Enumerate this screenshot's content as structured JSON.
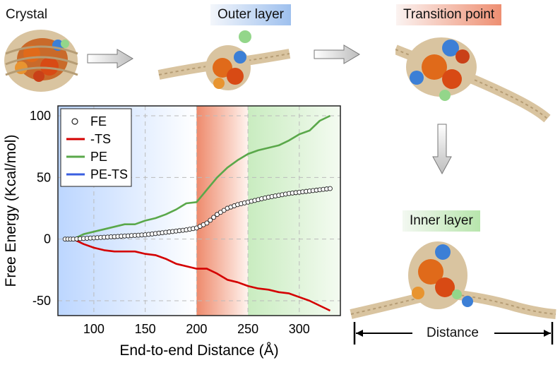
{
  "stages": {
    "crystal": "Crystal",
    "outer": "Outer layer",
    "transition": "Transition point",
    "inner": "Inner layer"
  },
  "distance_label": "Distance",
  "colors": {
    "fe_marker": "#222222",
    "ts": "#d40000",
    "pe": "#5aa84a",
    "pe_ts": "#3a5fe0",
    "region_blue": "#bcd6ff",
    "region_red": "#ee8a6c",
    "region_green": "#c9ecc0",
    "dna": "#d9c4a0",
    "protein_orange": "#e06a1a",
    "protein_blue": "#3c7fd6",
    "protein_green": "#93d68a"
  },
  "chart_data": {
    "type": "line",
    "xlabel": "End-to-end Distance (Å)",
    "ylabel": "Free Energy (Kcal/mol)",
    "xlim": [
      65,
      340
    ],
    "ylim": [
      -62,
      108
    ],
    "xticks": [
      "100",
      "150",
      "200",
      "250",
      "300"
    ],
    "yticks": [
      "-50",
      "0",
      "50",
      "100"
    ],
    "grid": true,
    "legend": "top-left",
    "regions": [
      {
        "from": 65,
        "to": 200,
        "color": "blue"
      },
      {
        "from": 200,
        "to": 250,
        "color": "red"
      },
      {
        "from": 250,
        "to": 340,
        "color": "green"
      }
    ],
    "x": [
      72,
      80,
      90,
      100,
      110,
      120,
      130,
      140,
      150,
      160,
      170,
      180,
      190,
      200,
      210,
      220,
      230,
      240,
      250,
      260,
      270,
      280,
      290,
      300,
      310,
      320,
      330
    ],
    "series": [
      {
        "name": "FE",
        "style": "marker",
        "values": [
          0,
          0,
          0.5,
          1,
          1.5,
          2,
          2.5,
          3,
          3.5,
          4.5,
          5.5,
          6.5,
          7.5,
          9,
          13,
          20,
          25,
          28,
          30,
          32,
          34,
          35.5,
          37,
          38,
          39,
          40,
          41
        ]
      },
      {
        "name": "-TS",
        "style": "line",
        "values": [
          0,
          0,
          -4,
          -7,
          -9,
          -10,
          -10,
          -10,
          -12,
          -13,
          -16,
          -20,
          -22,
          -24,
          -24,
          -28,
          -33,
          -35,
          -38,
          -40,
          -41,
          -43,
          -44,
          -47,
          -50,
          -54,
          -58
        ]
      },
      {
        "name": "PE",
        "style": "line",
        "values": [
          0,
          0,
          4,
          6,
          8,
          10,
          12,
          12,
          15,
          17,
          20,
          24,
          29,
          30,
          40,
          50,
          58,
          64,
          69,
          72,
          74,
          76,
          80,
          85,
          88,
          96,
          100
        ]
      },
      {
        "name": "PE-TS",
        "style": "line",
        "values": [
          0,
          0,
          0.5,
          1,
          1.5,
          2,
          2.5,
          3,
          3.5,
          4.5,
          5.5,
          6.5,
          7.5,
          9,
          13,
          20,
          25,
          28,
          30,
          32,
          34,
          35.5,
          37,
          38,
          39,
          40,
          42
        ]
      }
    ]
  }
}
